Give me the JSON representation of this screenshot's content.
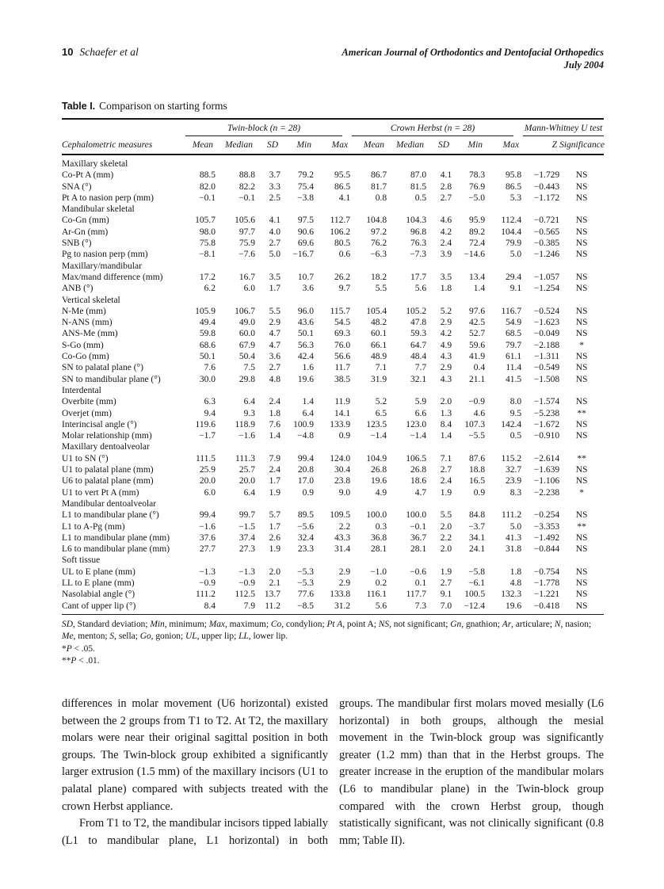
{
  "page": {
    "number": "10",
    "authors": "Schaefer et al",
    "journal_line1": "American Journal of Orthodontics and Dentofacial Orthopedics",
    "journal_line2": "July 2004"
  },
  "table": {
    "label": "Table I.",
    "title": "Comparison on starting forms",
    "group_headers": [
      "Twin-block (n = 28)",
      "Crown Herbst (n = 28)",
      "Mann-Whitney U test"
    ],
    "col_headers": {
      "measure": "Cephalometric measures",
      "stats": [
        "Mean",
        "Median",
        "SD",
        "Min",
        "Max"
      ],
      "test": [
        "Z",
        "Significance"
      ]
    },
    "rows": [
      {
        "section": true,
        "label": "Maxillary skeletal"
      },
      {
        "label": "Co-Pt A (mm)",
        "v": [
          "88.5",
          "88.8",
          "3.7",
          "79.2",
          "95.5",
          "86.7",
          "87.0",
          "4.1",
          "78.3",
          "95.8",
          "−1.729",
          "NS"
        ]
      },
      {
        "label": "SNA (°)",
        "v": [
          "82.0",
          "82.2",
          "3.3",
          "75.4",
          "86.5",
          "81.7",
          "81.5",
          "2.8",
          "76.9",
          "86.5",
          "−0.443",
          "NS"
        ]
      },
      {
        "label": "Pt A to nasion perp (mm)",
        "v": [
          "−0.1",
          "−0.1",
          "2.5",
          "−3.8",
          "4.1",
          "0.8",
          "0.5",
          "2.7",
          "−5.0",
          "5.3",
          "−1.172",
          "NS"
        ]
      },
      {
        "section": true,
        "label": "Mandibular skeletal"
      },
      {
        "label": "Co-Gn (mm)",
        "v": [
          "105.7",
          "105.6",
          "4.1",
          "97.5",
          "112.7",
          "104.8",
          "104.3",
          "4.6",
          "95.9",
          "112.4",
          "−0.721",
          "NS"
        ]
      },
      {
        "label": "Ar-Gn (mm)",
        "v": [
          "98.0",
          "97.7",
          "4.0",
          "90.6",
          "106.2",
          "97.2",
          "96.8",
          "4.2",
          "89.2",
          "104.4",
          "−0.565",
          "NS"
        ]
      },
      {
        "label": "SNB (°)",
        "v": [
          "75.8",
          "75.9",
          "2.7",
          "69.6",
          "80.5",
          "76.2",
          "76.3",
          "2.4",
          "72.4",
          "79.9",
          "−0.385",
          "NS"
        ]
      },
      {
        "label": "Pg to nasion perp (mm)",
        "v": [
          "−8.1",
          "−7.6",
          "5.0",
          "−16.7",
          "0.6",
          "−6.3",
          "−7.3",
          "3.9",
          "−14.6",
          "5.0",
          "−1.246",
          "NS"
        ]
      },
      {
        "section": true,
        "label": "Maxillary/mandibular"
      },
      {
        "label": "Max/mand difference (mm)",
        "v": [
          "17.2",
          "16.7",
          "3.5",
          "10.7",
          "26.2",
          "18.2",
          "17.7",
          "3.5",
          "13.4",
          "29.4",
          "−1.057",
          "NS"
        ]
      },
      {
        "label": "ANB (°)",
        "v": [
          "6.2",
          "6.0",
          "1.7",
          "3.6",
          "9.7",
          "5.5",
          "5.6",
          "1.8",
          "1.4",
          "9.1",
          "−1.254",
          "NS"
        ]
      },
      {
        "section": true,
        "label": "Vertical skeletal"
      },
      {
        "label": "N-Me (mm)",
        "v": [
          "105.9",
          "106.7",
          "5.5",
          "96.0",
          "115.7",
          "105.4",
          "105.2",
          "5.2",
          "97.6",
          "116.7",
          "−0.524",
          "NS"
        ]
      },
      {
        "label": "N-ANS (mm)",
        "v": [
          "49.4",
          "49.0",
          "2.9",
          "43.6",
          "54.5",
          "48.2",
          "47.8",
          "2.9",
          "42.5",
          "54.9",
          "−1.623",
          "NS"
        ]
      },
      {
        "label": "ANS-Me (mm)",
        "v": [
          "59.8",
          "60.0",
          "4.7",
          "50.1",
          "69.3",
          "60.1",
          "59.3",
          "4.2",
          "52.7",
          "68.5",
          "−0.049",
          "NS"
        ]
      },
      {
        "label": "S-Go (mm)",
        "v": [
          "68.6",
          "67.9",
          "4.7",
          "56.3",
          "76.0",
          "66.1",
          "64.7",
          "4.9",
          "59.6",
          "79.7",
          "−2.188",
          "*"
        ]
      },
      {
        "label": "Co-Go (mm)",
        "v": [
          "50.1",
          "50.4",
          "3.6",
          "42.4",
          "56.6",
          "48.9",
          "48.4",
          "4.3",
          "41.9",
          "61.1",
          "−1.311",
          "NS"
        ]
      },
      {
        "label": "SN to palatal plane (°)",
        "v": [
          "7.6",
          "7.5",
          "2.7",
          "1.6",
          "11.7",
          "7.1",
          "7.7",
          "2.9",
          "0.4",
          "11.4",
          "−0.549",
          "NS"
        ]
      },
      {
        "label": "SN to mandibular plane (°)",
        "v": [
          "30.0",
          "29.8",
          "4.8",
          "19.6",
          "38.5",
          "31.9",
          "32.1",
          "4.3",
          "21.1",
          "41.5",
          "−1.508",
          "NS"
        ]
      },
      {
        "section": true,
        "label": "Interdental"
      },
      {
        "label": "Overbite (mm)",
        "v": [
          "6.3",
          "6.4",
          "2.4",
          "1.4",
          "11.9",
          "5.2",
          "5.9",
          "2.0",
          "−0.9",
          "8.0",
          "−1.574",
          "NS"
        ]
      },
      {
        "label": "Overjet (mm)",
        "v": [
          "9.4",
          "9.3",
          "1.8",
          "6.4",
          "14.1",
          "6.5",
          "6.6",
          "1.3",
          "4.6",
          "9.5",
          "−5.238",
          "**"
        ]
      },
      {
        "label": "Interincisal angle (°)",
        "v": [
          "119.6",
          "118.9",
          "7.6",
          "100.9",
          "133.9",
          "123.5",
          "123.0",
          "8.4",
          "107.3",
          "142.4",
          "−1.672",
          "NS"
        ]
      },
      {
        "label": "Molar relationship (mm)",
        "v": [
          "−1.7",
          "−1.6",
          "1.4",
          "−4.8",
          "0.9",
          "−1.4",
          "−1.4",
          "1.4",
          "−5.5",
          "0.5",
          "−0.910",
          "NS"
        ]
      },
      {
        "section": true,
        "label": "Maxillary dentoalveolar"
      },
      {
        "label": "U1 to SN (°)",
        "v": [
          "111.5",
          "111.3",
          "7.9",
          "99.4",
          "124.0",
          "104.9",
          "106.5",
          "7.1",
          "87.6",
          "115.2",
          "−2.614",
          "**"
        ]
      },
      {
        "label": "U1 to palatal plane (mm)",
        "v": [
          "25.9",
          "25.7",
          "2.4",
          "20.8",
          "30.4",
          "26.8",
          "26.8",
          "2.7",
          "18.8",
          "32.7",
          "−1.639",
          "NS"
        ]
      },
      {
        "label": "U6 to palatal plane (mm)",
        "v": [
          "20.0",
          "20.0",
          "1.7",
          "17.0",
          "23.8",
          "19.6",
          "18.6",
          "2.4",
          "16.5",
          "23.9",
          "−1.106",
          "NS"
        ]
      },
      {
        "label": "U1 to vert Pt A (mm)",
        "v": [
          "6.0",
          "6.4",
          "1.9",
          "0.9",
          "9.0",
          "4.9",
          "4.7",
          "1.9",
          "0.9",
          "8.3",
          "−2.238",
          "*"
        ]
      },
      {
        "section": true,
        "label": "Mandibular dentoalveolar"
      },
      {
        "label": "L1 to mandibular plane (°)",
        "v": [
          "99.4",
          "99.7",
          "5.7",
          "89.5",
          "109.5",
          "100.0",
          "100.0",
          "5.5",
          "84.8",
          "111.2",
          "−0.254",
          "NS"
        ]
      },
      {
        "label": "L1 to A-Pg (mm)",
        "v": [
          "−1.6",
          "−1.5",
          "1.7",
          "−5.6",
          "2.2",
          "0.3",
          "−0.1",
          "2.0",
          "−3.7",
          "5.0",
          "−3.353",
          "**"
        ]
      },
      {
        "label": "L1 to mandibular plane (mm)",
        "v": [
          "37.6",
          "37.4",
          "2.6",
          "32.4",
          "43.3",
          "36.8",
          "36.7",
          "2.2",
          "34.1",
          "41.3",
          "−1.492",
          "NS"
        ]
      },
      {
        "label": "L6 to mandibular plane (mm)",
        "v": [
          "27.7",
          "27.3",
          "1.9",
          "23.3",
          "31.4",
          "28.1",
          "28.1",
          "2.0",
          "24.1",
          "31.8",
          "−0.844",
          "NS"
        ]
      },
      {
        "section": true,
        "label": "Soft tissue"
      },
      {
        "label": "UL to E plane (mm)",
        "v": [
          "−1.3",
          "−1.3",
          "2.0",
          "−5.3",
          "2.9",
          "−1.0",
          "−0.6",
          "1.9",
          "−5.8",
          "1.8",
          "−0.754",
          "NS"
        ]
      },
      {
        "label": "LL to E plane (mm)",
        "v": [
          "−0.9",
          "−0.9",
          "2.1",
          "−5.3",
          "2.9",
          "0.2",
          "0.1",
          "2.7",
          "−6.1",
          "4.8",
          "−1.778",
          "NS"
        ]
      },
      {
        "label": "Nasolabial angle (°)",
        "v": [
          "111.2",
          "112.5",
          "13.7",
          "77.6",
          "133.8",
          "116.1",
          "117.7",
          "9.1",
          "100.5",
          "132.3",
          "−1.221",
          "NS"
        ]
      },
      {
        "label": "Cant of upper lip (°)",
        "v": [
          "8.4",
          "7.9",
          "11.2",
          "−8.5",
          "31.2",
          "5.6",
          "7.3",
          "7.0",
          "−12.4",
          "19.6",
          "−0.418",
          "NS"
        ]
      }
    ],
    "abbreviations": [
      [
        "SD",
        "Standard deviation"
      ],
      [
        "Min",
        "minimum"
      ],
      [
        "Max",
        "maximum"
      ],
      [
        "Co",
        "condylion"
      ],
      [
        "Pt A",
        "point A"
      ],
      [
        "NS",
        "not significant"
      ],
      [
        "Gn",
        "gnathion"
      ],
      [
        "Ar",
        "articulare"
      ],
      [
        "N",
        "nasion"
      ],
      [
        "Me",
        "menton"
      ],
      [
        "S",
        "sella"
      ],
      [
        "Go",
        "gonion"
      ],
      [
        "UL",
        "upper lip"
      ],
      [
        "LL",
        "lower lip"
      ]
    ],
    "sig_notes": [
      {
        "stars": "*",
        "p": "P",
        "rest": " < .05."
      },
      {
        "stars": "**",
        "p": "P",
        "rest": " < .01."
      }
    ]
  },
  "body": {
    "left_column": [
      {
        "indent": false,
        "cont": false,
        "text": "differences in molar movement (U6 horizontal) existed between the 2 groups from T1 to T2. At T2, the maxillary molars were near their original sagittal position in both groups. The Twin-block group exhibited a significantly larger extrusion (1.5 mm) of the maxillary incisors (U1 to palatal plane) compared with subjects treated with the crown Herbst appliance."
      },
      {
        "indent": true,
        "cont": true,
        "text": "From T1 to T2, the mandibular incisors tipped labially (L1 to mandibular plane, L1 horizontal) in both"
      }
    ],
    "right_column": [
      {
        "indent": false,
        "cont": false,
        "text": "groups. The mandibular first molars moved mesially (L6 horizontal) in both groups, although the mesial movement in the Twin-block group was significantly greater (1.2 mm) than that in the Herbst groups. The greater increase in the eruption of the mandibular molars (L6 to mandibular plane) in the Twin-block group compared with the crown Herbst group, though statistically significant, was not clinically significant (0.8 mm; Table II)."
      }
    ]
  }
}
